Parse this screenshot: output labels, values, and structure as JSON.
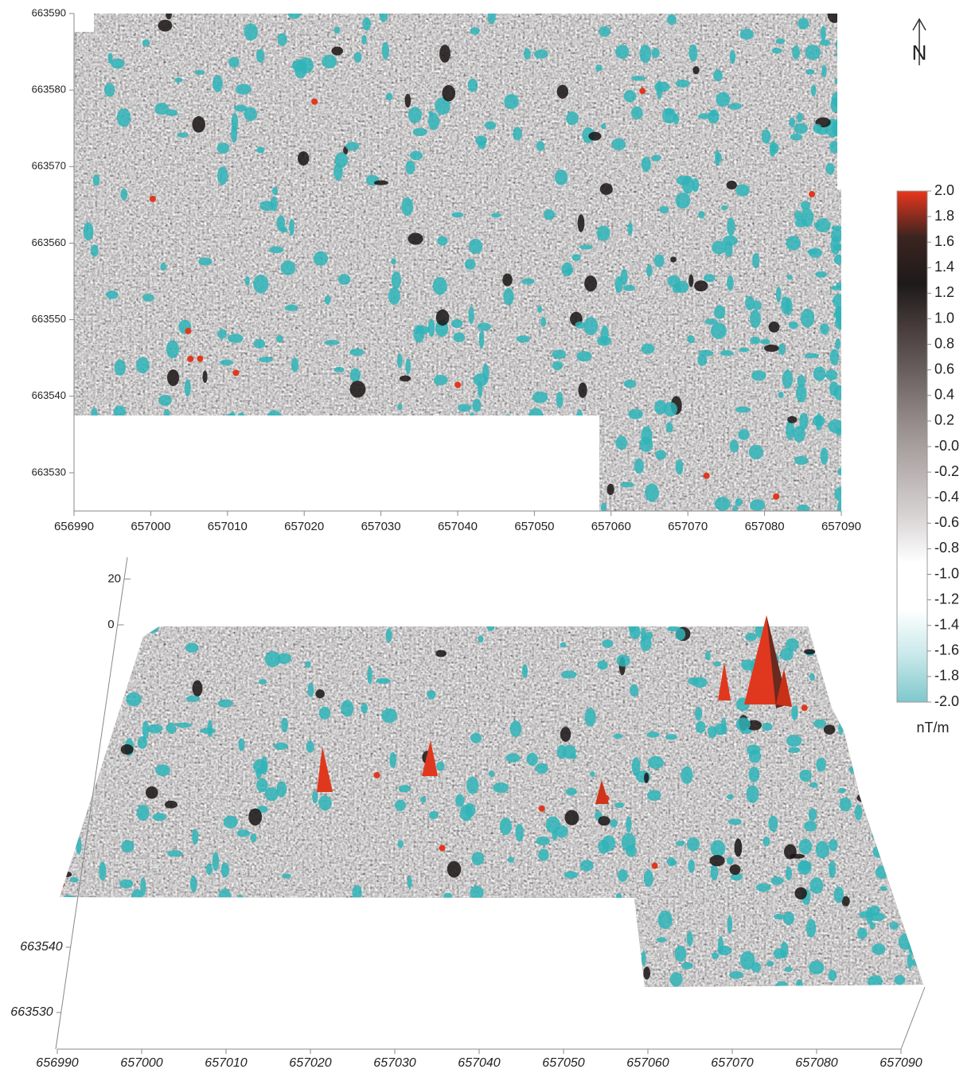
{
  "chart_data": [
    {
      "type": "heatmap",
      "xlim": [
        656990,
        657090
      ],
      "xticks": [
        656990,
        657000,
        657010,
        657020,
        657030,
        657040,
        657050,
        657060,
        657070,
        657080,
        657090
      ],
      "ylim": [
        663525,
        663590
      ],
      "yticks": [
        663530,
        663540,
        663550,
        663560,
        663570,
        663580,
        663590
      ],
      "north_label": "N",
      "colorbar": {
        "label": "nT/m",
        "lim": [
          -2,
          2
        ],
        "colors": [
          "#7ec8cc",
          "#c8e8ea",
          "#ffffff",
          "#ffffff",
          "#d8d4d4",
          "#b8b0b0",
          "#968c8c",
          "#6e6464",
          "#4a3e3e",
          "#1e1a1a",
          "#3a2420",
          "#e8361c"
        ],
        "ticks": [
          {
            "value": 2,
            "label": "2.0"
          },
          1.8,
          1.6,
          1.4,
          1.2,
          {
            "value": 1,
            "label": "1.0"
          },
          0.8,
          0.6,
          0.4,
          0.2,
          {
            "value": 0,
            "label": "-0.0"
          },
          -0.2,
          -0.4,
          -0.6,
          -0.8,
          {
            "value": -1,
            "label": "-1.0"
          },
          -1.2,
          -1.4,
          -1.6,
          -1.8,
          {
            "value": -2,
            "label": "-2.0"
          }
        ]
      }
    },
    {
      "type": "surface",
      "xlim": [
        656990,
        657090
      ],
      "xticks": [
        656990,
        657000,
        657010,
        657020,
        657030,
        657040,
        657050,
        657060,
        657070,
        657080,
        657090
      ],
      "ylim": [
        663525,
        663590
      ],
      "yticks": [
        663530,
        663540
      ],
      "zlim": [
        0,
        25
      ],
      "zticks": [
        0,
        20
      ]
    }
  ]
}
